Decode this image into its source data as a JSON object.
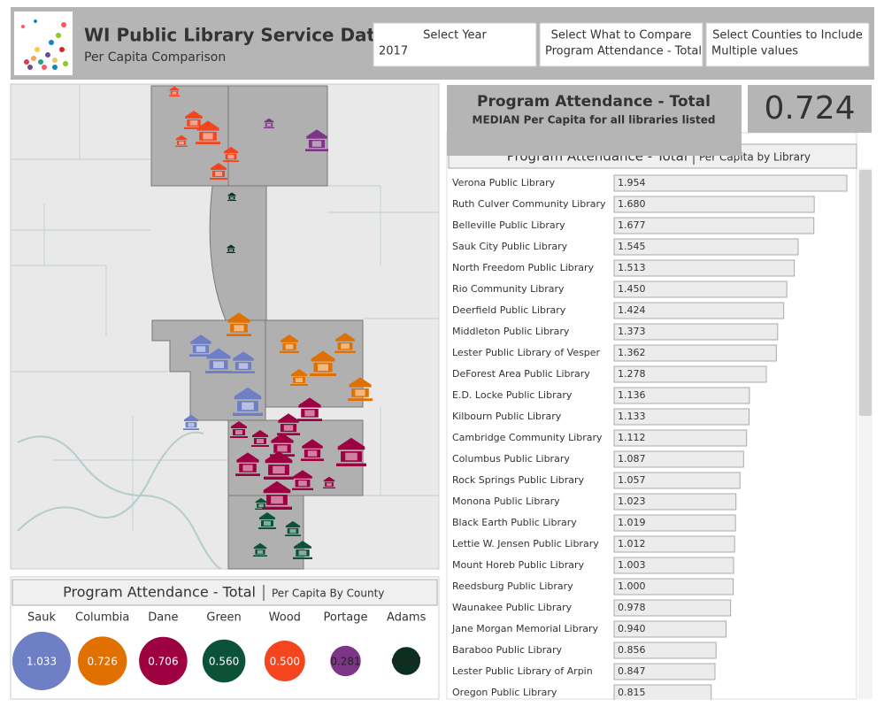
{
  "header": {
    "title": "WI Public Library Service Data",
    "subtitle": "Per Capita Comparison"
  },
  "filters": [
    {
      "label": "Select Year",
      "value": "2017"
    },
    {
      "label": "Select What to Compare",
      "value": "Program Attendance - Total"
    },
    {
      "label": "Select Counties to Include",
      "value": "Multiple values"
    }
  ],
  "kpi": {
    "title": "Program Attendance - Total",
    "subtitle": "MEDIAN Per Capita for all libraries listed",
    "value": 0.724
  },
  "chart_data": [
    {
      "type": "bar",
      "title": "Program Attendance - Total",
      "subtitle": "Per Capita by Library",
      "categories": [
        "Verona Public Library",
        "Ruth Culver Community Library",
        "Belleville Public Library",
        "Sauk City Public Library",
        "North Freedom Public Library",
        "Rio Community Library",
        "Deerfield Public Library",
        "Middleton Public Library",
        "Lester Public Library of Vesper",
        "DeForest Area Public Library",
        "E.D. Locke Public Library",
        "Kilbourn Public Library",
        "Cambridge Community Library",
        "Columbus Public Library",
        "Rock Springs Public Library",
        "Monona Public Library",
        "Black Earth Public Library",
        "Lettie W. Jensen Public Library",
        "Mount Horeb Public Library",
        "Reedsburg Public Library",
        "Waunakee Public Library",
        "Jane Morgan Memorial Library",
        "Baraboo Public Library",
        "Lester Public Library of Arpin",
        "Oregon Public Library"
      ],
      "values": [
        1.954,
        1.68,
        1.677,
        1.545,
        1.513,
        1.45,
        1.424,
        1.373,
        1.362,
        1.278,
        1.136,
        1.133,
        1.112,
        1.087,
        1.057,
        1.023,
        1.019,
        1.012,
        1.003,
        1.0,
        0.978,
        0.94,
        0.856,
        0.847,
        0.815
      ],
      "value_labels": [
        "1.954",
        "1.680",
        "1.677",
        "1.545",
        "1.513",
        "1.450",
        "1.424",
        "1.373",
        "1.362",
        "1.278",
        "1.136",
        "1.133",
        "1.112",
        "1.087",
        "1.057",
        "1.023",
        "1.019",
        "1.012",
        "1.003",
        "1.000",
        "0.978",
        "0.940",
        "0.856",
        "0.847",
        "0.815"
      ],
      "color": "#ececec"
    },
    {
      "type": "bubble",
      "title": "Program Attendance - Total",
      "subtitle": "Per Capita By County",
      "categories": [
        "Sauk",
        "Columbia",
        "Dane",
        "Green",
        "Wood",
        "Portage",
        "Adams"
      ],
      "values": [
        1.033,
        0.726,
        0.706,
        0.56,
        0.5,
        0.281,
        0.237
      ],
      "value_labels": [
        "1.033",
        "0.726",
        "0.706",
        "0.560",
        "0.500",
        "0.281",
        "0.237"
      ],
      "colors": [
        "#6f7fc6",
        "#e07000",
        "#9e0142",
        "#0b5239",
        "#f4451f",
        "#7d3585",
        "#0b2f20"
      ]
    }
  ]
}
